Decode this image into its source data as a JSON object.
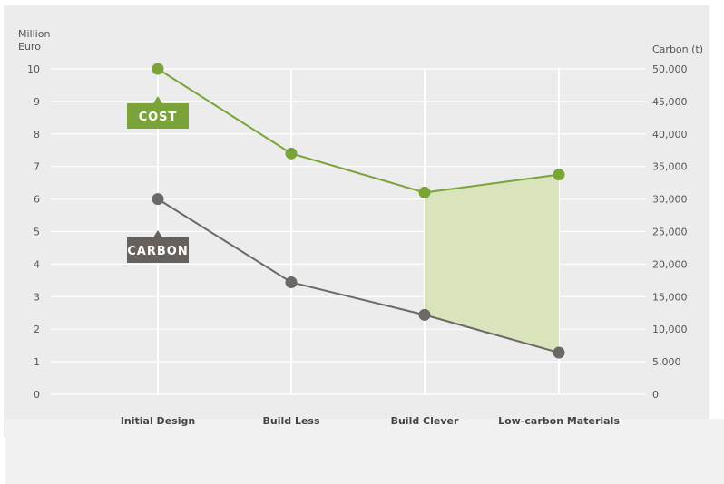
{
  "chart_data": {
    "type": "line",
    "categories": [
      "Initial Design",
      "Build Less",
      "Build Clever",
      "Low-carbon Materials"
    ],
    "series": [
      {
        "name": "COST",
        "axis": "left",
        "values": [
          10.0,
          7.4,
          6.2,
          6.75
        ]
      },
      {
        "name": "CARBON",
        "axis": "right",
        "values": [
          30000,
          17200,
          12200,
          6400
        ]
      }
    ],
    "y_left": {
      "label_lines": [
        "Million",
        "Euro"
      ],
      "range": [
        0,
        10
      ],
      "ticks": [
        "0",
        "1",
        "2",
        "3",
        "4",
        "5",
        "6",
        "7",
        "8",
        "9",
        "10"
      ]
    },
    "y_right": {
      "label": "Carbon (t)",
      "range": [
        0,
        50000
      ],
      "ticks": [
        "0",
        "5,000",
        "10,000",
        "15,000",
        "20,000",
        "25,000",
        "30,000",
        "35,000",
        "40,000",
        "45,000",
        "50,000"
      ]
    },
    "grid": true,
    "shaded_region": {
      "from_category": "Build Clever",
      "to_category": "Low-carbon Materials",
      "between": [
        "COST",
        "CARBON"
      ]
    },
    "colors": {
      "cost": "#7aa33a",
      "carbon": "#6b6865",
      "shade": "#d9e4bd",
      "grid": "#ffffff",
      "tag_cost": "#7aa33a",
      "tag_carbon": "#66615d"
    }
  }
}
